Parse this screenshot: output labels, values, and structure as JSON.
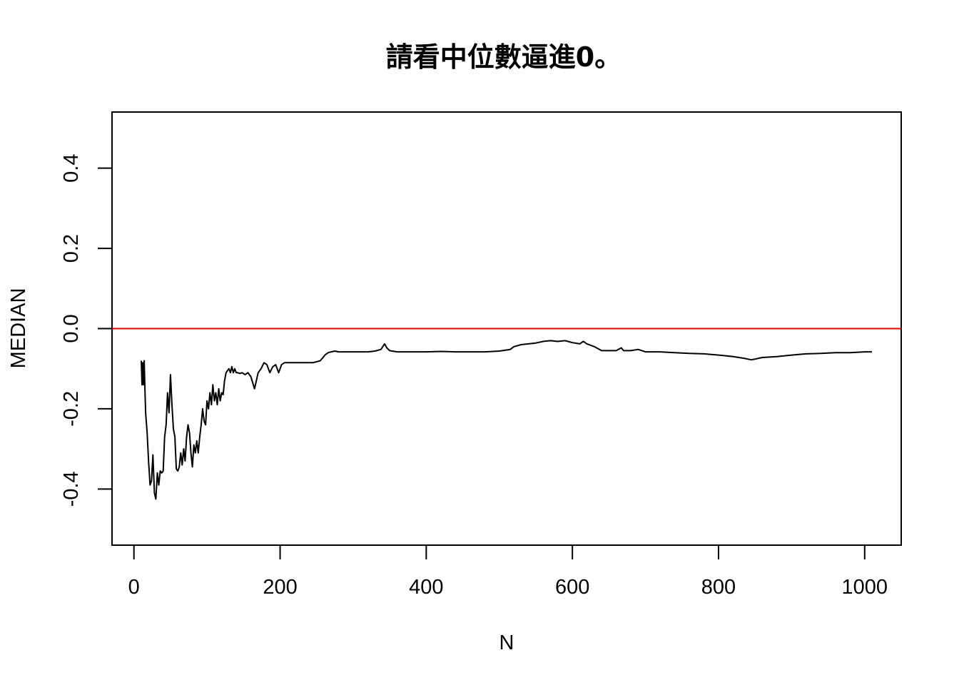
{
  "chart_data": {
    "type": "line",
    "title": "請看中位數逼進0。",
    "xlabel": "N",
    "ylabel": "MEDIAN",
    "xlim": [
      -30,
      1050
    ],
    "ylim": [
      -0.54,
      0.54
    ],
    "xticks": [
      0,
      200,
      400,
      600,
      800,
      1000
    ],
    "xtick_labels": [
      "0",
      "200",
      "400",
      "600",
      "800",
      "1000"
    ],
    "yticks": [
      -0.4,
      -0.2,
      0.0,
      0.2,
      0.4
    ],
    "ytick_labels": [
      "-0.4",
      "-0.2",
      "0.0",
      "0.2",
      "0.4"
    ],
    "grid": false,
    "reference_line": {
      "y": 0,
      "color": "#dd0000"
    },
    "series": [
      {
        "color": "#000000",
        "x": [
          10,
          11,
          12,
          13,
          14,
          15,
          16,
          18,
          20,
          22,
          24,
          26,
          28,
          30,
          32,
          34,
          36,
          38,
          40,
          42,
          44,
          46,
          48,
          50,
          52,
          54,
          56,
          58,
          60,
          62,
          64,
          66,
          68,
          70,
          72,
          74,
          76,
          78,
          80,
          82,
          84,
          86,
          88,
          90,
          92,
          94,
          96,
          98,
          100,
          102,
          104,
          106,
          108,
          110,
          112,
          114,
          116,
          118,
          120,
          122,
          124,
          126,
          128,
          130,
          132,
          134,
          136,
          138,
          140,
          142,
          145,
          148,
          152,
          156,
          160,
          165,
          170,
          174,
          178,
          182,
          186,
          190,
          194,
          198,
          202,
          206,
          210,
          214,
          218,
          225,
          235,
          245,
          255,
          262,
          266,
          270,
          275,
          280,
          290,
          300,
          310,
          320,
          330,
          338,
          343,
          346,
          350,
          360,
          380,
          400,
          420,
          440,
          460,
          480,
          500,
          515,
          520,
          530,
          540,
          550,
          560,
          570,
          580,
          590,
          600,
          610,
          615,
          620,
          630,
          640,
          650,
          660,
          667,
          670,
          680,
          690,
          700,
          720,
          740,
          760,
          780,
          800,
          820,
          835,
          845,
          860,
          880,
          900,
          920,
          940,
          960,
          980,
          1000,
          1010
        ],
        "y": [
          -0.08,
          -0.14,
          -0.085,
          -0.14,
          -0.08,
          -0.15,
          -0.21,
          -0.26,
          -0.33,
          -0.39,
          -0.38,
          -0.315,
          -0.41,
          -0.425,
          -0.36,
          -0.39,
          -0.355,
          -0.36,
          -0.355,
          -0.27,
          -0.24,
          -0.16,
          -0.21,
          -0.115,
          -0.19,
          -0.25,
          -0.27,
          -0.35,
          -0.355,
          -0.345,
          -0.31,
          -0.34,
          -0.3,
          -0.33,
          -0.27,
          -0.24,
          -0.26,
          -0.31,
          -0.345,
          -0.29,
          -0.31,
          -0.28,
          -0.31,
          -0.27,
          -0.24,
          -0.2,
          -0.23,
          -0.24,
          -0.18,
          -0.2,
          -0.16,
          -0.19,
          -0.14,
          -0.18,
          -0.16,
          -0.19,
          -0.15,
          -0.18,
          -0.16,
          -0.165,
          -0.13,
          -0.11,
          -0.105,
          -0.1,
          -0.11,
          -0.095,
          -0.11,
          -0.1,
          -0.11,
          -0.11,
          -0.112,
          -0.11,
          -0.115,
          -0.11,
          -0.12,
          -0.15,
          -0.11,
          -0.1,
          -0.085,
          -0.09,
          -0.11,
          -0.095,
          -0.09,
          -0.11,
          -0.09,
          -0.085,
          -0.085,
          -0.085,
          -0.085,
          -0.085,
          -0.085,
          -0.085,
          -0.08,
          -0.065,
          -0.06,
          -0.058,
          -0.056,
          -0.058,
          -0.058,
          -0.058,
          -0.058,
          -0.058,
          -0.056,
          -0.052,
          -0.038,
          -0.048,
          -0.055,
          -0.058,
          -0.058,
          -0.058,
          -0.057,
          -0.058,
          -0.058,
          -0.058,
          -0.056,
          -0.052,
          -0.045,
          -0.04,
          -0.038,
          -0.036,
          -0.032,
          -0.03,
          -0.032,
          -0.03,
          -0.035,
          -0.038,
          -0.032,
          -0.038,
          -0.045,
          -0.055,
          -0.055,
          -0.055,
          -0.048,
          -0.055,
          -0.055,
          -0.052,
          -0.058,
          -0.058,
          -0.06,
          -0.062,
          -0.063,
          -0.066,
          -0.07,
          -0.074,
          -0.078,
          -0.072,
          -0.07,
          -0.066,
          -0.063,
          -0.062,
          -0.06,
          -0.06,
          -0.058,
          -0.058
        ]
      }
    ]
  }
}
